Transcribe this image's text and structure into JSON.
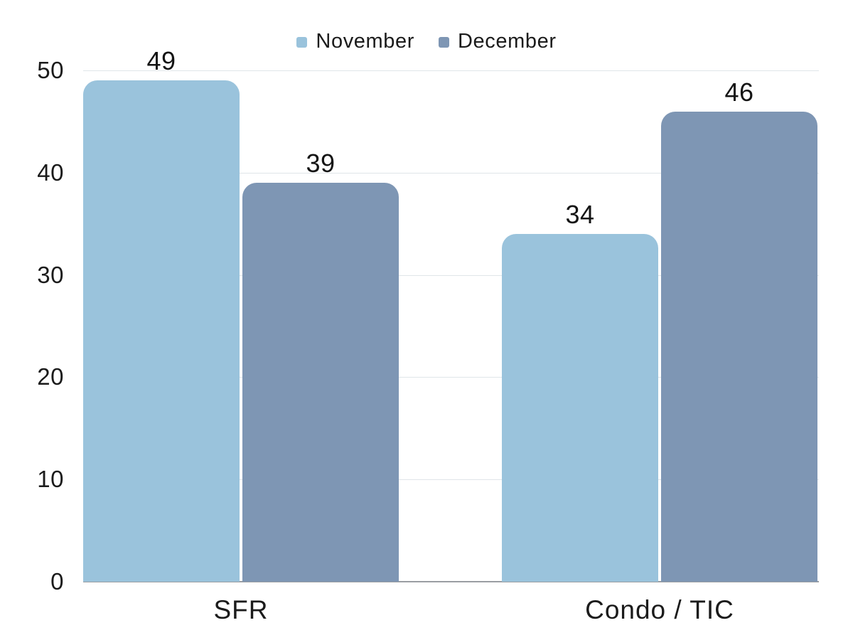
{
  "chart_data": {
    "type": "bar",
    "grouping": "grouped",
    "categories": [
      "SFR",
      "Condo / TIC"
    ],
    "series": [
      {
        "name": "November",
        "color": "#9ac3dc",
        "values": [
          49,
          34
        ]
      },
      {
        "name": "December",
        "color": "#7e96b4",
        "values": [
          39,
          46
        ]
      }
    ],
    "data_labels": true,
    "title": "",
    "xlabel": "",
    "ylabel": "",
    "yticks": [
      0,
      10,
      20,
      30,
      40,
      50
    ],
    "ylim": [
      0,
      50
    ],
    "grid": true,
    "legend_position": "top"
  },
  "colors": {
    "background": "#ffffff",
    "gridline": "#e0e5e9",
    "axis_line": "#9a9ea2",
    "text": "#1b1b1b",
    "series_november": "#9ac3dc",
    "series_december": "#7e96b4"
  }
}
